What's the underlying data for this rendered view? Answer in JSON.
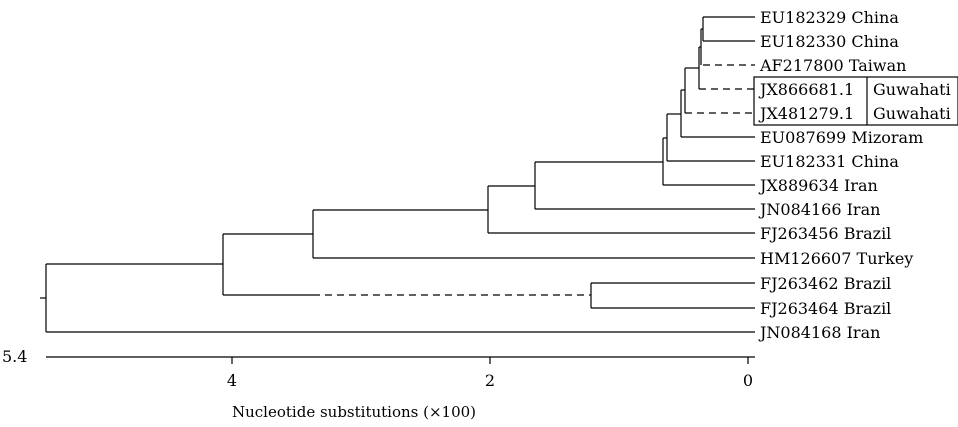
{
  "leaves": [
    {
      "id": "l1",
      "accession": "EU182329",
      "place": "China"
    },
    {
      "id": "l2",
      "accession": "EU182330",
      "place": "China"
    },
    {
      "id": "l3",
      "accession": "AF217800",
      "place": "Taiwan"
    },
    {
      "id": "l4",
      "accession": "JX866681.1",
      "place": "Guwahati"
    },
    {
      "id": "l5",
      "accession": "JX481279.1",
      "place": "Guwahati"
    },
    {
      "id": "l6",
      "accession": "EU087699",
      "place": "Mizoram"
    },
    {
      "id": "l7",
      "accession": "EU182331",
      "place": "China"
    },
    {
      "id": "l8",
      "accession": "JX889634",
      "place": "Iran"
    },
    {
      "id": "l9",
      "accession": "JN084166",
      "place": "Iran"
    },
    {
      "id": "l10",
      "accession": "FJ263456",
      "place": "Brazil"
    },
    {
      "id": "l11",
      "accession": "HM126607",
      "place": "Turkey"
    },
    {
      "id": "l12",
      "accession": "FJ263462",
      "place": "Brazil"
    },
    {
      "id": "l13",
      "accession": "FJ263464",
      "place": "Brazil"
    },
    {
      "id": "l14",
      "accession": "JN084168",
      "place": "Iran"
    }
  ],
  "scale": {
    "start_label": "5.4",
    "ticks": [
      "4",
      "2",
      "0"
    ],
    "axis_label": "Nucleotide substitutions (×100)"
  }
}
